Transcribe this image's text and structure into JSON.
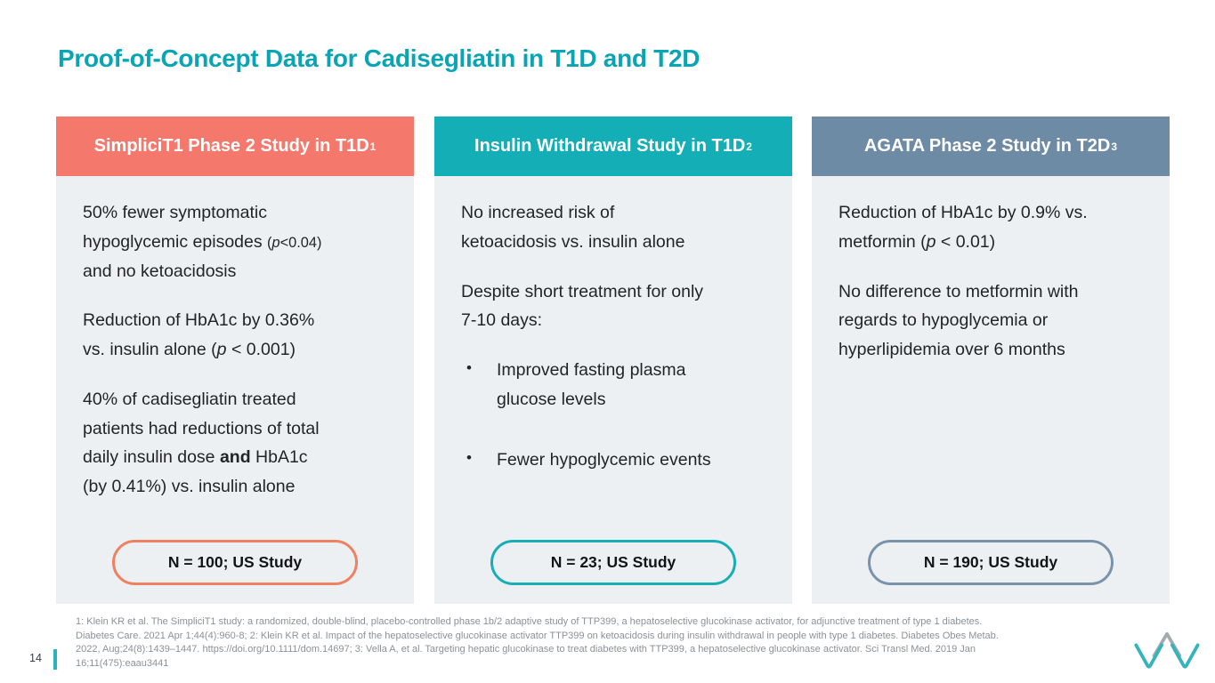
{
  "slide": {
    "title": "Proof-of-Concept Data for Cadisegliatin in T1D and T2D",
    "title_color": "#0AA5B5",
    "background": "#FFFFFF"
  },
  "cards": [
    {
      "header": {
        "text": "SimpliciT1 Phase 2 Study in T1D",
        "sup": "1",
        "bg_color": "#F4796C",
        "text_color": "#FFFFFF"
      },
      "body_bg": "#EDF0F3",
      "blocks": [
        {
          "type": "p",
          "segments": [
            {
              "t": "50% fewer symptomatic",
              "br": true
            },
            {
              "t": "hypoglycemic episodes "
            },
            {
              "t": "(",
              "sm": true
            },
            {
              "t": "p",
              "sm": true,
              "i": true
            },
            {
              "t": "<0.04)",
              "sm": true,
              "br": true
            },
            {
              "t": "and no ketoacidosis"
            }
          ]
        },
        {
          "type": "p",
          "segments": [
            {
              "t": "Reduction of HbA1c by 0.36%",
              "br": true
            },
            {
              "t": "vs. insulin alone ("
            },
            {
              "t": "p",
              "i": true
            },
            {
              "t": " < 0.001)"
            }
          ]
        },
        {
          "type": "p",
          "segments": [
            {
              "t": "40% of cadisegliatin treated",
              "br": true
            },
            {
              "t": "patients had reductions of total",
              "br": true
            },
            {
              "t": "daily insulin dose "
            },
            {
              "t": "and",
              "b": true
            },
            {
              "t": " HbA1c",
              "br": true
            },
            {
              "t": "(by 0.41%) vs. insulin alone"
            }
          ]
        }
      ],
      "pill": {
        "label": "N = 100; US Study",
        "border_color": "#EF8060"
      }
    },
    {
      "header": {
        "text": "Insulin Withdrawal Study in T1D",
        "sup": "2",
        "bg_color": "#14AEB6",
        "text_color": "#FFFFFF"
      },
      "body_bg": "#EDF0F3",
      "blocks": [
        {
          "type": "p",
          "segments": [
            {
              "t": "No increased risk of",
              "br": true
            },
            {
              "t": "ketoacidosis vs. insulin alone"
            }
          ]
        },
        {
          "type": "p",
          "segments": [
            {
              "t": "Despite short treatment for only",
              "br": true
            },
            {
              "t": "7-10 days:"
            }
          ]
        },
        {
          "type": "bullet",
          "segments": [
            {
              "t": "Improved fasting plasma",
              "br": true
            },
            {
              "t": "glucose levels"
            }
          ]
        },
        {
          "type": "bullet",
          "segments": [
            {
              "t": "Fewer hypoglycemic events"
            }
          ]
        }
      ],
      "pill": {
        "label": "N = 23; US Study",
        "border_color": "#17AEB5"
      }
    },
    {
      "header": {
        "text": "AGATA Phase 2 Study in T2D",
        "sup": "3",
        "bg_color": "#6E8BA6",
        "text_color": "#FFFFFF"
      },
      "body_bg": "#EDF0F3",
      "blocks": [
        {
          "type": "p",
          "segments": [
            {
              "t": "Reduction of HbA1c by 0.9% vs.",
              "br": true
            },
            {
              "t": "metformin ("
            },
            {
              "t": "p",
              "i": true
            },
            {
              "t": " < 0.01)"
            }
          ]
        },
        {
          "type": "p",
          "segments": [
            {
              "t": "No difference to metformin with",
              "br": true
            },
            {
              "t": "regards to hypoglycemia or",
              "br": true
            },
            {
              "t": "hyperlipidemia over 6 months"
            }
          ]
        }
      ],
      "pill": {
        "label": "N = 190; US Study",
        "border_color": "#7A92AA"
      }
    }
  ],
  "bullet_marker": "•",
  "footnote": {
    "color": "#8C9196",
    "lines": [
      "1: Klein KR et al. The SimpliciT1 study: a randomized, double-blind, placebo-controlled phase 1b/2 adaptive study of TTP399, a hepatoselective glucokinase activator, for adjunctive treatment of type 1 diabetes.",
      "Diabetes Care. 2021 Apr 1;44(4):960-8; 2: Klein KR et al. Impact of the hepatoselective glucokinase activator TTP399 on ketoacidosis during insulin withdrawal in people with type 1 diabetes. Diabetes Obes Metab.",
      "2022, Aug;24(8):1439–1447. https://doi.org/10.1111/dom.14697; 3: Vella A, et al. Targeting hepatic glucokinase to treat diabetes with TTP399, a hepatoselective glucokinase activator. Sci Transl Med. 2019 Jan",
      "16;11(475):eaau3441"
    ]
  },
  "footer": {
    "page_number": "14",
    "bar_color": "#2AB2BD"
  },
  "logo": {
    "label": "vtv-logo",
    "teal": "#35B4BC",
    "gray": "#A6A9AD"
  }
}
